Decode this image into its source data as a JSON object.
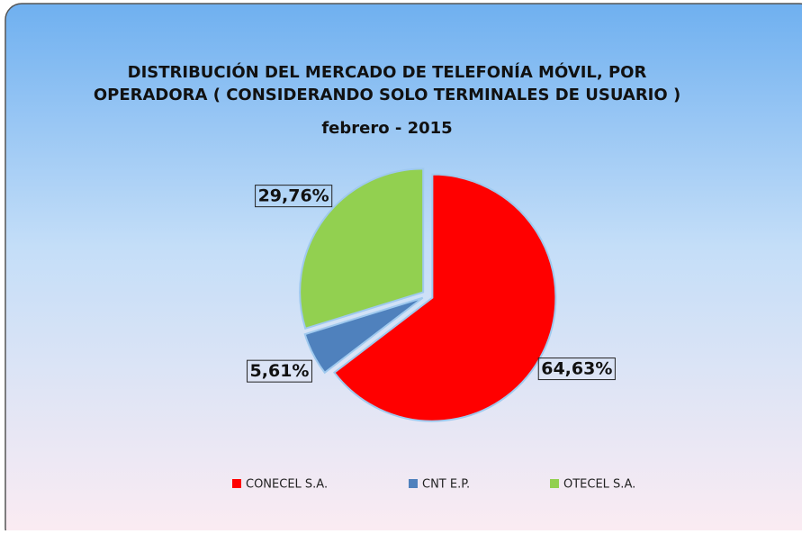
{
  "chart_data": {
    "type": "pie",
    "title": "DISTRIBUCIÓN DEL MERCADO DE TELEFONÍA MÓVIL, POR OPERADORA ( CONSIDERANDO SOLO TERMINALES DE USUARIO )",
    "subtitle": "febrero - 2015",
    "categories": [
      "CONECEL S.A.",
      "CNT E.P.",
      "OTECEL S.A."
    ],
    "values": [
      64.63,
      5.61,
      29.76
    ],
    "value_labels": [
      "64,63%",
      "5,61%",
      "29,76%"
    ],
    "colors": [
      "#ff0000",
      "#4f81bd",
      "#92d050"
    ],
    "legend": "bottom"
  }
}
